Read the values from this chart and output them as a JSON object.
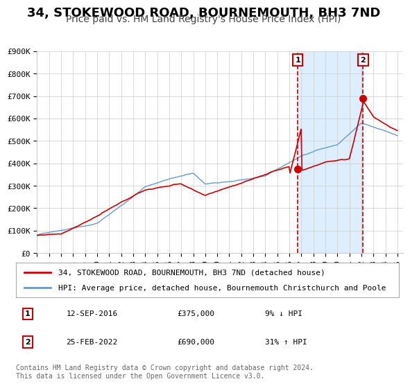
{
  "title": "34, STOKEWOOD ROAD, BOURNEMOUTH, BH3 7ND",
  "subtitle": "Price paid vs. HM Land Registry's House Price Index (HPI)",
  "ylabel": "",
  "ylim": [
    0,
    900000
  ],
  "yticks": [
    0,
    100000,
    200000,
    300000,
    400000,
    500000,
    600000,
    700000,
    800000,
    900000
  ],
  "ytick_labels": [
    "£0",
    "£100K",
    "£200K",
    "£300K",
    "£400K",
    "£500K",
    "£600K",
    "£700K",
    "£800K",
    "£900K"
  ],
  "xlim_start": 1995.0,
  "xlim_end": 2025.5,
  "xticks": [
    1995,
    1996,
    1997,
    1998,
    1999,
    2000,
    2001,
    2002,
    2003,
    2004,
    2005,
    2006,
    2007,
    2008,
    2009,
    2010,
    2011,
    2012,
    2013,
    2014,
    2015,
    2016,
    2017,
    2018,
    2019,
    2020,
    2021,
    2022,
    2023,
    2024,
    2025
  ],
  "sale1_x": 2016.7,
  "sale1_y": 375000,
  "sale1_label": "1",
  "sale1_date": "12-SEP-2016",
  "sale1_price": "£375,000",
  "sale1_hpi": "9% ↓ HPI",
  "sale2_x": 2022.15,
  "sale2_y": 690000,
  "sale2_label": "2",
  "sale2_date": "25-FEB-2022",
  "sale2_price": "£690,000",
  "sale2_hpi": "31% ↑ HPI",
  "red_line_color": "#cc0000",
  "blue_line_color": "#6699cc",
  "grid_color": "#cccccc",
  "highlight_bg_color": "#ddeeff",
  "legend_line1": "34, STOKEWOOD ROAD, BOURNEMOUTH, BH3 7ND (detached house)",
  "legend_line2": "HPI: Average price, detached house, Bournemouth Christchurch and Poole",
  "footnote": "Contains HM Land Registry data © Crown copyright and database right 2024.\nThis data is licensed under the Open Government Licence v3.0.",
  "title_fontsize": 13,
  "subtitle_fontsize": 10,
  "tick_fontsize": 8,
  "legend_fontsize": 8,
  "footnote_fontsize": 7
}
